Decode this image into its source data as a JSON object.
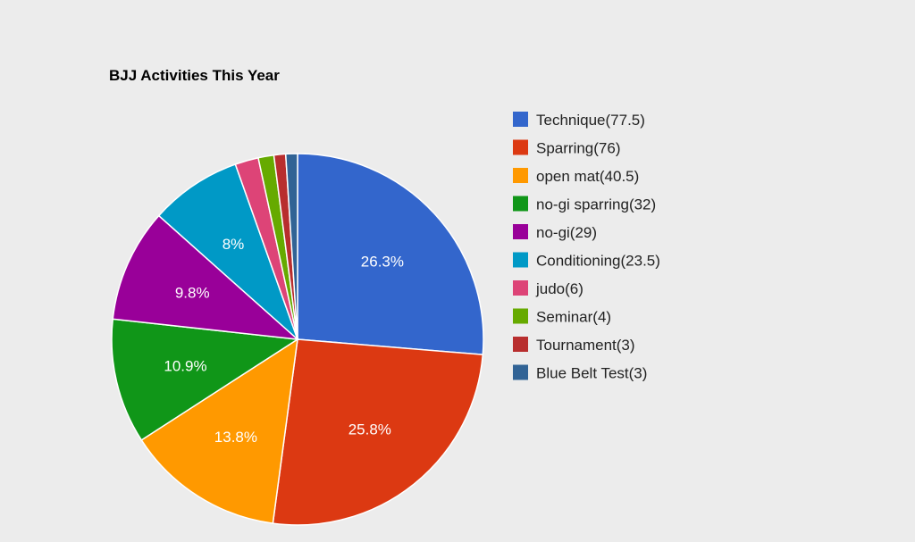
{
  "chart_data": {
    "type": "pie",
    "title": "BJJ Activities This Year",
    "legend_position": "right",
    "slices": [
      {
        "legend": "Technique(77.5)",
        "value": 77.5,
        "label": "26.3%",
        "color": "#3366cc"
      },
      {
        "legend": "Sparring(76)",
        "value": 76,
        "label": "25.8%",
        "color": "#dc3912"
      },
      {
        "legend": "open mat(40.5)",
        "value": 40.5,
        "label": "13.8%",
        "color": "#ff9900"
      },
      {
        "legend": "no-gi sparring(32)",
        "value": 32,
        "label": "10.9%",
        "color": "#109618"
      },
      {
        "legend": "no-gi(29)",
        "value": 29,
        "label": "9.8%",
        "color": "#990099"
      },
      {
        "legend": "Conditioning(23.5)",
        "value": 23.5,
        "label": "8%",
        "color": "#0099c6"
      },
      {
        "legend": "judo(6)",
        "value": 6,
        "label": "",
        "color": "#dd4477"
      },
      {
        "legend": "Seminar(4)",
        "value": 4,
        "label": "",
        "color": "#66aa00"
      },
      {
        "legend": "Tournament(3)",
        "value": 3,
        "label": "",
        "color": "#b82e2e"
      },
      {
        "legend": "Blue Belt Test(3)",
        "value": 3,
        "label": "",
        "color": "#316395"
      }
    ]
  }
}
